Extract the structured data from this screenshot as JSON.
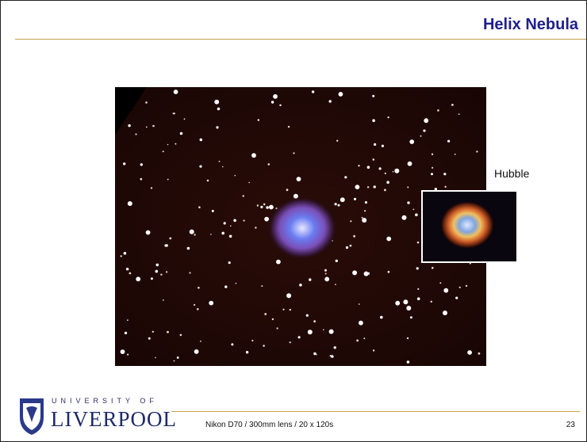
{
  "header": {
    "title": "Helix Nebula"
  },
  "inset_label": "Hubble",
  "footer": {
    "logo_top": "UNIVERSITY OF",
    "logo_name": "LIVERPOOL",
    "caption": "Nikon D70 / 300mm lens / 20 x 120s",
    "page": "23"
  }
}
